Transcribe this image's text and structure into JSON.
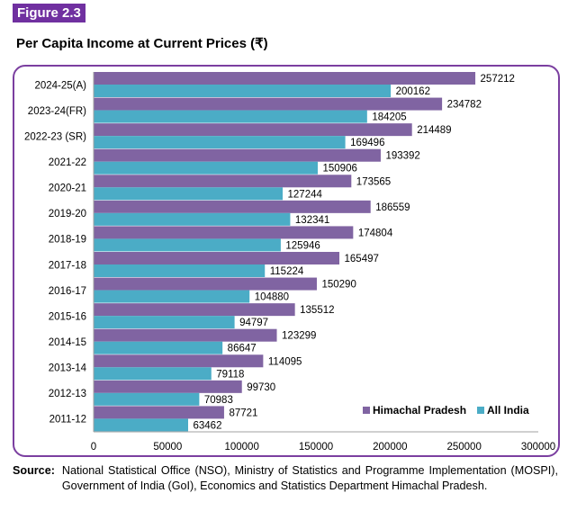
{
  "figure_label": "Figure 2.3",
  "title": "Per Capita Income at Current Prices (₹)",
  "source": {
    "label": "Source:",
    "text": "National Statistical Office (NSO), Ministry of Statistics and Programme Implementation (MOSPI), Government of India (GoI), Economics and Statistics Department Himachal Pradesh."
  },
  "chart_data": {
    "type": "bar",
    "orientation": "horizontal",
    "categories": [
      "2024-25(A)",
      "2023-24(FR)",
      "2022-23 (SR)",
      "2021-22",
      "2020-21",
      "2019-20",
      "2018-19",
      "2017-18",
      "2016-17",
      "2015-16",
      "2014-15",
      "2013-14",
      "2012-13",
      "2011-12"
    ],
    "series": [
      {
        "name": "Himachal Pradesh",
        "color": "#8064a2",
        "values": [
          257212,
          234782,
          214489,
          193392,
          173565,
          186559,
          174804,
          165497,
          150290,
          135512,
          123299,
          114095,
          99730,
          87721
        ]
      },
      {
        "name": "All India",
        "color": "#4bacc6",
        "values": [
          200162,
          184205,
          169496,
          150906,
          127244,
          132341,
          125946,
          115224,
          104880,
          94797,
          86647,
          79118,
          70983,
          63462
        ]
      }
    ],
    "xlim": [
      0,
      300000
    ],
    "xticks": [
      0,
      50000,
      100000,
      150000,
      200000,
      250000,
      300000
    ],
    "grid": false,
    "legend_position": "bottom-right"
  }
}
